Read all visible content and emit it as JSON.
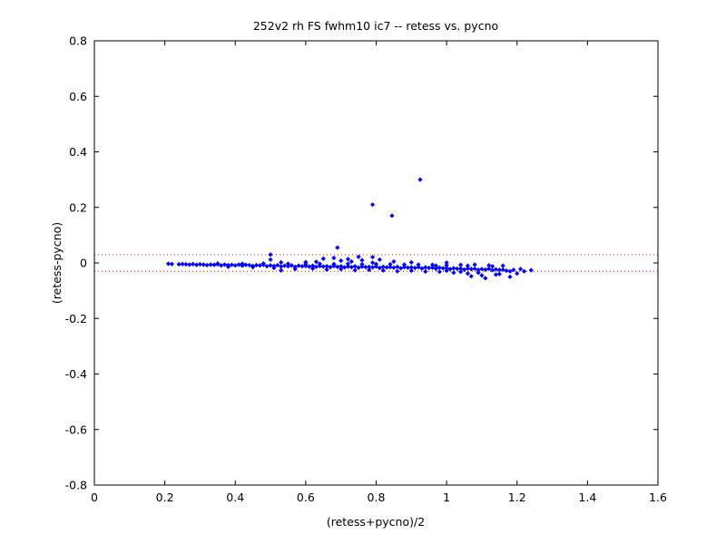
{
  "chart_data": {
    "type": "scatter",
    "title": "252v2 rh FS fwhm10 ic7 -- retess vs. pycno",
    "xlabel": "(retess+pycno)/2",
    "ylabel": "(retess-pycno)",
    "xlim": [
      0,
      1.6
    ],
    "ylim": [
      -0.8,
      0.8
    ],
    "xticks": [
      "0",
      "0.2",
      "0.4",
      "0.6",
      "0.8",
      "1",
      "1.2",
      "1.4",
      "1.6"
    ],
    "yticks": [
      "-0.8",
      "-0.6",
      "-0.4",
      "-0.2",
      "0",
      "0.2",
      "0.4",
      "0.6",
      "0.8"
    ],
    "grid": false,
    "colors": {
      "points": "#0000ff",
      "reference_lines": "#ff0000"
    },
    "reference_lines": [
      0.03,
      -0.03
    ],
    "series": [
      {
        "marker": "diamond",
        "points": [
          [
            0.21,
            -0.003
          ],
          [
            0.22,
            -0.004
          ],
          [
            0.24,
            -0.005
          ],
          [
            0.25,
            -0.004
          ],
          [
            0.26,
            -0.005
          ],
          [
            0.27,
            -0.006
          ],
          [
            0.28,
            -0.004
          ],
          [
            0.29,
            -0.007
          ],
          [
            0.3,
            -0.005
          ],
          [
            0.31,
            -0.006
          ],
          [
            0.32,
            -0.008
          ],
          [
            0.33,
            -0.006
          ],
          [
            0.34,
            -0.007
          ],
          [
            0.35,
            -0.005
          ],
          [
            0.36,
            -0.009
          ],
          [
            0.37,
            -0.006
          ],
          [
            0.38,
            -0.008
          ],
          [
            0.39,
            -0.007
          ],
          [
            0.4,
            -0.009
          ],
          [
            0.41,
            -0.006
          ],
          [
            0.42,
            -0.01
          ],
          [
            0.43,
            -0.007
          ],
          [
            0.44,
            -0.008
          ],
          [
            0.45,
            -0.011
          ],
          [
            0.46,
            -0.008
          ],
          [
            0.47,
            -0.009
          ],
          [
            0.48,
            -0.007
          ],
          [
            0.49,
            -0.012
          ],
          [
            0.5,
            -0.009
          ],
          [
            0.51,
            -0.011
          ],
          [
            0.52,
            -0.008
          ],
          [
            0.53,
            -0.013
          ],
          [
            0.54,
            -0.01
          ],
          [
            0.55,
            -0.012
          ],
          [
            0.56,
            -0.009
          ],
          [
            0.57,
            -0.014
          ],
          [
            0.58,
            -0.01
          ],
          [
            0.59,
            -0.012
          ],
          [
            0.6,
            -0.011
          ],
          [
            0.61,
            -0.013
          ],
          [
            0.62,
            -0.01
          ],
          [
            0.63,
            -0.014
          ],
          [
            0.64,
            -0.011
          ],
          [
            0.65,
            -0.013
          ],
          [
            0.66,
            -0.012
          ],
          [
            0.67,
            -0.015
          ],
          [
            0.68,
            -0.011
          ],
          [
            0.69,
            -0.014
          ],
          [
            0.7,
            -0.012
          ],
          [
            0.71,
            -0.016
          ],
          [
            0.72,
            -0.013
          ],
          [
            0.73,
            -0.015
          ],
          [
            0.74,
            -0.012
          ],
          [
            0.75,
            -0.017
          ],
          [
            0.76,
            -0.013
          ],
          [
            0.77,
            -0.015
          ],
          [
            0.78,
            -0.014
          ],
          [
            0.79,
            -0.016
          ],
          [
            0.8,
            -0.013
          ],
          [
            0.81,
            -0.018
          ],
          [
            0.82,
            -0.014
          ],
          [
            0.83,
            -0.016
          ],
          [
            0.84,
            -0.015
          ],
          [
            0.85,
            -0.017
          ],
          [
            0.86,
            -0.014
          ],
          [
            0.87,
            -0.019
          ],
          [
            0.88,
            -0.015
          ],
          [
            0.89,
            -0.017
          ],
          [
            0.9,
            -0.016
          ],
          [
            0.91,
            -0.018
          ],
          [
            0.92,
            -0.015
          ],
          [
            0.93,
            -0.02
          ],
          [
            0.94,
            -0.016
          ],
          [
            0.95,
            -0.018
          ],
          [
            0.96,
            -0.017
          ],
          [
            0.97,
            -0.021
          ],
          [
            0.98,
            -0.017
          ],
          [
            0.99,
            -0.019
          ],
          [
            1.0,
            -0.018
          ],
          [
            1.01,
            -0.022
          ],
          [
            1.02,
            -0.019
          ],
          [
            1.03,
            -0.021
          ],
          [
            1.04,
            -0.02
          ],
          [
            1.05,
            -0.024
          ],
          [
            1.06,
            -0.02
          ],
          [
            1.07,
            -0.022
          ],
          [
            1.08,
            -0.021
          ],
          [
            1.09,
            -0.025
          ],
          [
            1.1,
            -0.022
          ],
          [
            1.11,
            -0.024
          ],
          [
            1.12,
            -0.021
          ],
          [
            1.13,
            -0.026
          ],
          [
            1.14,
            -0.023
          ],
          [
            1.15,
            -0.025
          ],
          [
            1.16,
            -0.024
          ],
          [
            1.17,
            -0.028
          ],
          [
            1.18,
            -0.03
          ],
          [
            1.19,
            -0.025
          ],
          [
            1.21,
            -0.022
          ],
          [
            1.22,
            -0.03
          ],
          [
            1.24,
            -0.026
          ],
          [
            0.35,
            -0.002
          ],
          [
            0.38,
            -0.014
          ],
          [
            0.42,
            -0.003
          ],
          [
            0.45,
            -0.015
          ],
          [
            0.48,
            -0.002
          ],
          [
            0.51,
            -0.018
          ],
          [
            0.53,
            -0.027
          ],
          [
            0.55,
            -0.003
          ],
          [
            0.57,
            -0.022
          ],
          [
            0.6,
            -0.004
          ],
          [
            0.62,
            -0.02
          ],
          [
            0.64,
            -0.003
          ],
          [
            0.66,
            -0.024
          ],
          [
            0.68,
            -0.004
          ],
          [
            0.7,
            -0.022
          ],
          [
            0.72,
            -0.003
          ],
          [
            0.74,
            -0.026
          ],
          [
            0.76,
            -0.005
          ],
          [
            0.78,
            -0.025
          ],
          [
            0.8,
            -0.004
          ],
          [
            0.82,
            -0.027
          ],
          [
            0.84,
            -0.005
          ],
          [
            0.86,
            -0.03
          ],
          [
            0.88,
            -0.006
          ],
          [
            0.9,
            -0.028
          ],
          [
            0.92,
            -0.006
          ],
          [
            0.94,
            -0.031
          ],
          [
            0.96,
            -0.007
          ],
          [
            0.98,
            -0.032
          ],
          [
            1.0,
            -0.008
          ],
          [
            1.02,
            -0.035
          ],
          [
            1.04,
            -0.007
          ],
          [
            1.06,
            -0.038
          ],
          [
            1.08,
            -0.006
          ],
          [
            1.1,
            -0.045
          ],
          [
            1.12,
            -0.009
          ],
          [
            1.14,
            -0.042
          ],
          [
            1.16,
            -0.01
          ],
          [
            1.18,
            -0.05
          ],
          [
            1.2,
            -0.038
          ],
          [
            1.15,
            -0.04
          ],
          [
            1.07,
            -0.048
          ],
          [
            1.11,
            -0.055
          ],
          [
            1.04,
            -0.032
          ],
          [
            1.13,
            -0.012
          ],
          [
            1.06,
            -0.01
          ],
          [
            1.0,
            -0.028
          ],
          [
            0.97,
            -0.01
          ],
          [
            1.09,
            -0.035
          ],
          [
            0.5,
            0.03
          ],
          [
            0.5,
            0.012
          ],
          [
            0.53,
            0.002
          ],
          [
            0.6,
            0.003
          ],
          [
            0.63,
            0.004
          ],
          [
            0.65,
            0.015
          ],
          [
            0.68,
            0.018
          ],
          [
            0.69,
            0.055
          ],
          [
            0.7,
            0.008
          ],
          [
            0.72,
            0.014
          ],
          [
            0.73,
            0.005
          ],
          [
            0.75,
            0.022
          ],
          [
            0.76,
            0.01
          ],
          [
            0.79,
            0.001
          ],
          [
            0.79,
            0.021
          ],
          [
            0.81,
            0.012
          ],
          [
            0.85,
            0.005
          ],
          [
            0.9,
            0.002
          ],
          [
            1.0,
            0.001
          ],
          [
            0.79,
            0.21
          ],
          [
            0.845,
            0.17
          ],
          [
            0.925,
            0.3
          ]
        ]
      }
    ]
  }
}
